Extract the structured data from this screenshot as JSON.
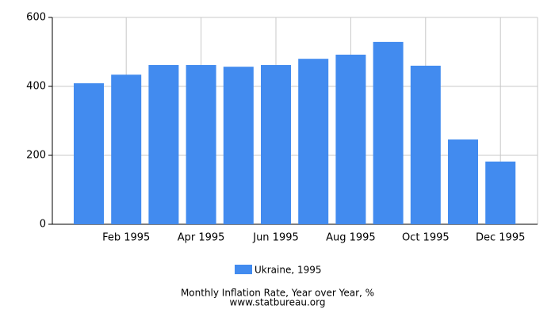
{
  "chart_data": {
    "type": "bar",
    "categories": [
      null,
      "Feb 1995",
      null,
      "Apr 1995",
      null,
      "Jun 1995",
      null,
      "Aug 1995",
      null,
      "Oct 1995",
      null,
      "Dec 1995"
    ],
    "series": [
      {
        "name": "Ukraine, 1995",
        "color": "#428bef",
        "values": [
          409,
          434,
          462,
          462,
          457,
          462,
          480,
          492,
          529,
          460,
          246,
          182
        ]
      }
    ],
    "ylim": [
      0,
      600
    ],
    "yticks": [
      0,
      200,
      400,
      600
    ],
    "grid": true,
    "title": "Monthly Inflation Rate, Year over Year, %",
    "source": "www.statbureau.org"
  }
}
